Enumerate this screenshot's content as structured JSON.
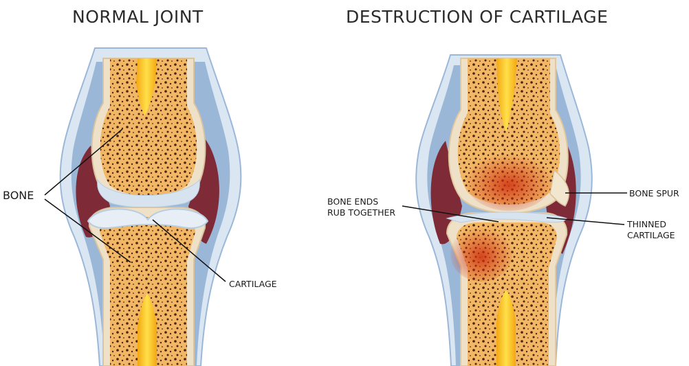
{
  "titles": {
    "left": "NORMAL JOINT",
    "right": "DESTRUCTION OF CARTILAGE"
  },
  "labels": {
    "bone": "BONE",
    "cartilage": "CARTILAGE",
    "bone_ends_line1": "BONE ENDS",
    "bone_ends_line2": "RUB TOGETHER",
    "bone_spur": "BONE SPUR",
    "thinned_line1": "THINNED",
    "thinned_line2": "CARTILAGE"
  },
  "colors": {
    "bone_fill": "#f2b765",
    "bone_rim": "#efe1c8",
    "marrow": "#f6c21a",
    "cartilage": "#d7e4ef",
    "synovial": "#7f2a37",
    "capsule": "#9bb7d8",
    "inflamed": "#cf3010"
  }
}
